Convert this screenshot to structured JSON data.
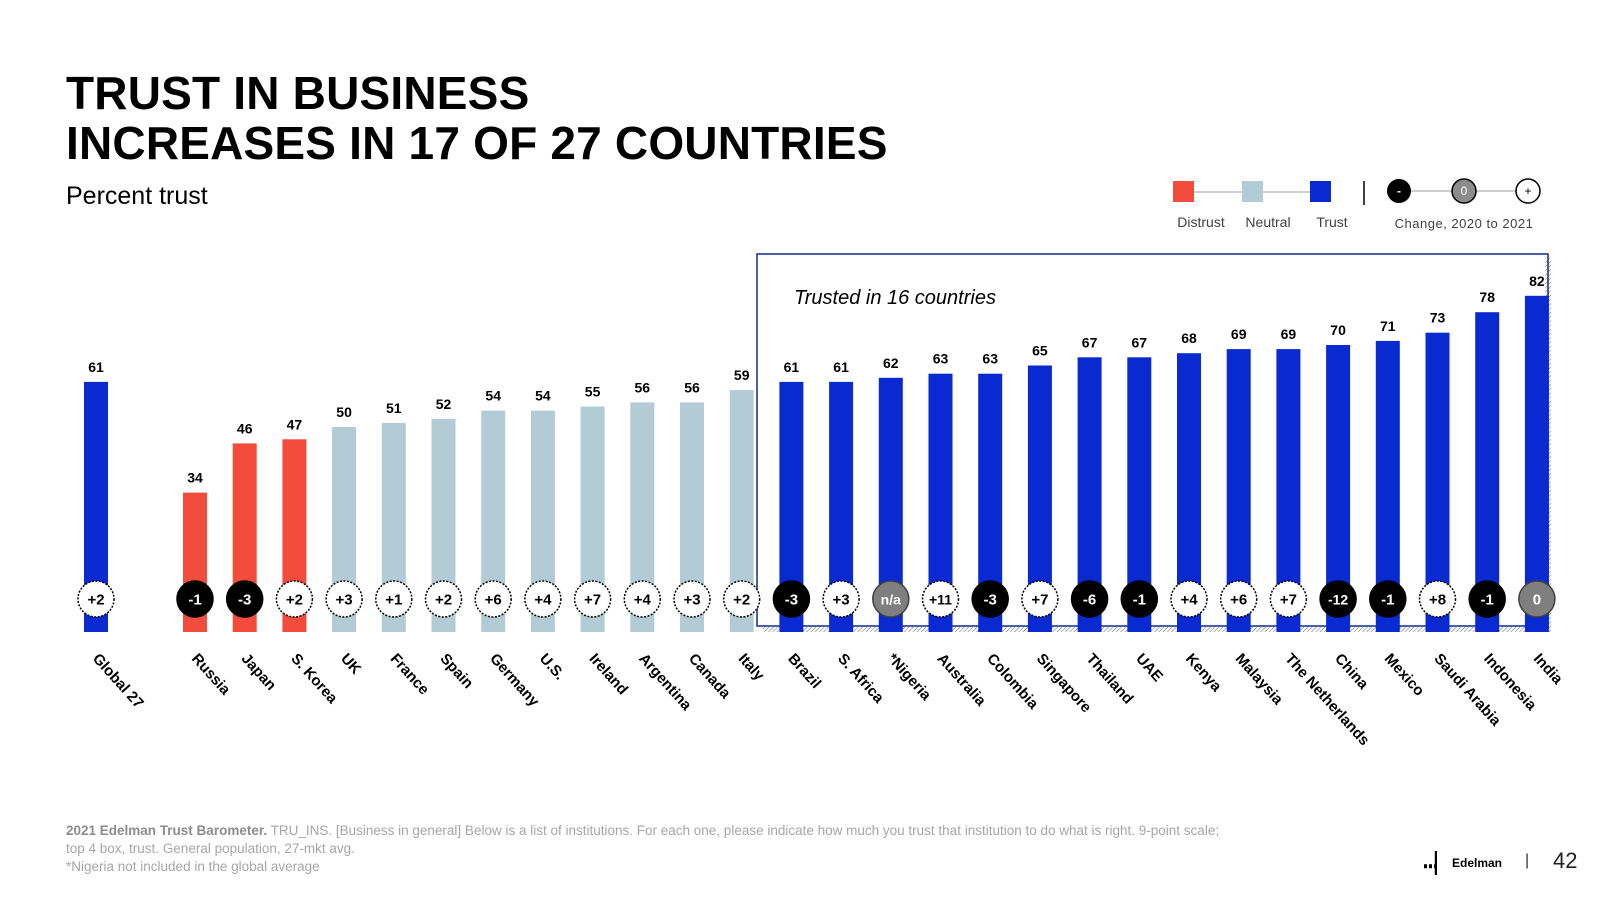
{
  "title_line1": "TRUST IN BUSINESS",
  "title_line2": "INCREASES IN 17 OF 27 COUNTRIES",
  "subtitle": "Percent trust",
  "legend": {
    "distrust": "Distrust",
    "neutral": "Neutral",
    "trust": "Trust",
    "change_label": "Change, 2020 to 2021",
    "minus": "-",
    "zero": "0",
    "plus": "+"
  },
  "annotation": "Trusted in 16 countries",
  "colors": {
    "distrust": "#f24c3d",
    "neutral": "#b2cbd5",
    "trust": "#0a2ad1",
    "box": "#1f3a8c"
  },
  "chart_data": {
    "type": "bar",
    "title": "TRUST IN BUSINESS INCREASES IN 17 OF 27 COUNTRIES",
    "ylabel": "Percent trust",
    "ylim": [
      0,
      100
    ],
    "categories": [
      "Global 27",
      "Russia",
      "Japan",
      "S. Korea",
      "UK",
      "France",
      "Spain",
      "Germany",
      "U.S.",
      "Ireland",
      "Argentina",
      "Canada",
      "Italy",
      "Brazil",
      "S. Africa",
      "*Nigeria",
      "Australia",
      "Colombia",
      "Singapore",
      "Thailand",
      "UAE",
      "Kenya",
      "Malaysia",
      "The Netherlands",
      "China",
      "Mexico",
      "Saudi Arabia",
      "Indonesia",
      "India"
    ],
    "values": [
      61,
      34,
      46,
      47,
      50,
      51,
      52,
      54,
      54,
      55,
      56,
      56,
      59,
      61,
      61,
      62,
      63,
      63,
      65,
      67,
      67,
      68,
      69,
      69,
      70,
      71,
      73,
      78,
      82
    ],
    "level": [
      "trust",
      "distrust",
      "distrust",
      "distrust",
      "neutral",
      "neutral",
      "neutral",
      "neutral",
      "neutral",
      "neutral",
      "neutral",
      "neutral",
      "neutral",
      "trust",
      "trust",
      "trust",
      "trust",
      "trust",
      "trust",
      "trust",
      "trust",
      "trust",
      "trust",
      "trust",
      "trust",
      "trust",
      "trust",
      "trust",
      "trust"
    ],
    "change": [
      "+2",
      "-1",
      "-3",
      "+2",
      "+3",
      "+1",
      "+2",
      "+6",
      "+4",
      "+7",
      "+4",
      "+3",
      "+2",
      "-3",
      "+3",
      "n/a",
      "+11",
      "-3",
      "+7",
      "-6",
      "-1",
      "+4",
      "+6",
      "+7",
      "-12",
      "-1",
      "+8",
      "-1",
      "0"
    ],
    "change_direction": [
      "up",
      "down",
      "down",
      "up",
      "up",
      "up",
      "up",
      "up",
      "up",
      "up",
      "up",
      "up",
      "up",
      "down",
      "up",
      "na",
      "up",
      "down",
      "up",
      "down",
      "down",
      "up",
      "up",
      "up",
      "down",
      "down",
      "up",
      "down",
      "zero"
    ]
  },
  "footnote": {
    "source": "2021 Edelman Trust Barometer.",
    "line1": " TRU_INS. [Business in general] Below is a list of institutions. For each one, please indicate how much you trust that institution to do what is right. 9-point scale;",
    "line2": "top 4 box, trust. General population, 27-mkt avg.",
    "line3": "*Nigeria not included in the global average"
  },
  "brand": "Edelman",
  "page_separator": "|",
  "page_number": "42"
}
